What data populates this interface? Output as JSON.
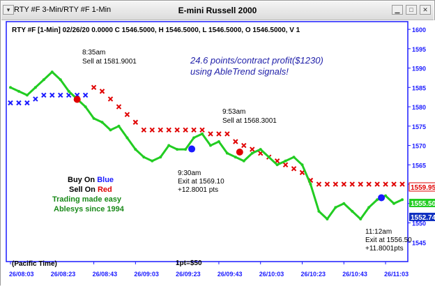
{
  "window": {
    "title": "RTY #F 3-Min/RTY #F 1-Min",
    "chart_title": "E-mini Russell 2000",
    "icons": [
      "window-menu-icon",
      "restore-icon",
      "maximize-icon",
      "close-icon"
    ]
  },
  "header_line": "RTY #F [1-Min] 02/26/20  0.0000 C 1546.5000, H 1546.5000, L 1546.5000, O 1546.5000, V 1",
  "annotations": {
    "profit_line1": "24.6 points/contract profit($1230)",
    "profit_line2": "using AbleTrend signals!",
    "sell1_time": "8:35am",
    "sell1_price": "Sell at 1581.9001",
    "exit1_time": "9:30am",
    "exit1_price": "Exit at 1569.10",
    "exit1_pts": "+12.8001 pts",
    "sell2_time": "9:53am",
    "sell2_price": "Sell at 1568.3001",
    "exit2_time": "11:12am",
    "exit2_price": "Exit at 1556.50",
    "exit2_pts": "+11.8001pts",
    "buy_label": "Buy On",
    "buy_word": "Blue",
    "sell_label": "Sell On",
    "sell_word": "Red",
    "tagline1": "Trading made easy",
    "tagline2": "Ablesys since 1994",
    "timezone": "(Pacific Time)",
    "pt_value": "1pt=$50"
  },
  "price_tags": [
    {
      "value": "1559.95",
      "color": "#e00000"
    },
    {
      "value": "1555.50",
      "color": "#22cc22"
    },
    {
      "value": "1552.74",
      "color": "#1030c0"
    }
  ],
  "colors": {
    "blue": "#1a1aff",
    "red": "#e00000",
    "green": "#22cc22",
    "axis": "#1a1aff",
    "tagline": "#1a8a1a"
  },
  "chart_data": {
    "type": "line",
    "title": "E-mini Russell 2000",
    "ylim": [
      1540,
      1602
    ],
    "y_ticks": [
      1545,
      1550,
      1555,
      1560,
      1565,
      1570,
      1575,
      1580,
      1585,
      1590,
      1595,
      1600
    ],
    "x_ticks": [
      "26/08:03",
      "26/08:23",
      "26/08:43",
      "26/09:03",
      "26/09:23",
      "26/09:43",
      "26/10:03",
      "26/10:23",
      "26/10:43",
      "26/11:03"
    ],
    "x_range_minutes": [
      0,
      188
    ],
    "x_tick_minutes": [
      0,
      20,
      40,
      60,
      80,
      100,
      120,
      140,
      160,
      180
    ],
    "series": [
      {
        "name": "price",
        "color": "#22cc22",
        "x": [
          0,
          4,
          8,
          12,
          16,
          20,
          24,
          28,
          32,
          36,
          40,
          44,
          48,
          52,
          56,
          60,
          64,
          68,
          72,
          76,
          80,
          84,
          88,
          92,
          96,
          100,
          104,
          108,
          112,
          116,
          120,
          124,
          128,
          132,
          136,
          140,
          144,
          148,
          152,
          156,
          160,
          164,
          168,
          172,
          176,
          180,
          184,
          188
        ],
        "y": [
          1585,
          1584,
          1583,
          1585,
          1587,
          1589,
          1587,
          1584,
          1582,
          1580,
          1577,
          1576,
          1574,
          1575,
          1572,
          1569,
          1567,
          1566,
          1567,
          1570,
          1569,
          1569,
          1572,
          1573,
          1570,
          1571,
          1568,
          1567,
          1566,
          1568,
          1569,
          1567,
          1565,
          1566,
          1567,
          1565,
          1560,
          1553,
          1551,
          1554,
          1555,
          1553,
          1551,
          1554,
          1556,
          1557,
          1555,
          1556
        ]
      },
      {
        "name": "sell stops",
        "color": "#e00000",
        "marker": "x",
        "x": [
          40,
          44,
          48,
          52,
          56,
          60,
          64,
          68,
          72,
          76,
          80,
          84,
          88,
          92,
          96,
          100,
          104,
          108,
          112,
          116,
          120,
          124,
          128,
          132,
          136,
          140,
          144,
          148,
          152,
          156,
          160,
          164,
          168,
          172,
          176,
          180,
          184,
          188
        ],
        "y": [
          1585,
          1584,
          1582,
          1580,
          1578,
          1576,
          1574,
          1574,
          1574,
          1574,
          1574,
          1574,
          1574,
          1574,
          1573,
          1573,
          1573,
          1571,
          1570,
          1569,
          1568,
          1567,
          1566,
          1565,
          1564,
          1563,
          1561,
          1560,
          1560,
          1560,
          1560,
          1560,
          1560,
          1560,
          1560,
          1560,
          1560,
          1560
        ]
      },
      {
        "name": "buy stops",
        "color": "#1a1aff",
        "marker": "x",
        "x": [
          0,
          4,
          8,
          12,
          16,
          20,
          24,
          28,
          32,
          36
        ],
        "y": [
          1581,
          1581,
          1581,
          1582,
          1583,
          1583,
          1583,
          1583,
          1583,
          1583
        ]
      }
    ],
    "signals": [
      {
        "label": "Sell at 1581.9001",
        "time": "8:35am",
        "y": 1581.9,
        "color": "#e00000"
      },
      {
        "label": "Exit at 1569.10",
        "time": "9:30am",
        "y": 1569.1,
        "color": "#1a1aff"
      },
      {
        "label": "Sell at 1568.3001",
        "time": "9:53am",
        "y": 1568.3,
        "color": "#e00000"
      },
      {
        "label": "Exit at 1556.50",
        "time": "11:12am",
        "y": 1556.5,
        "color": "#1a1aff"
      }
    ]
  }
}
